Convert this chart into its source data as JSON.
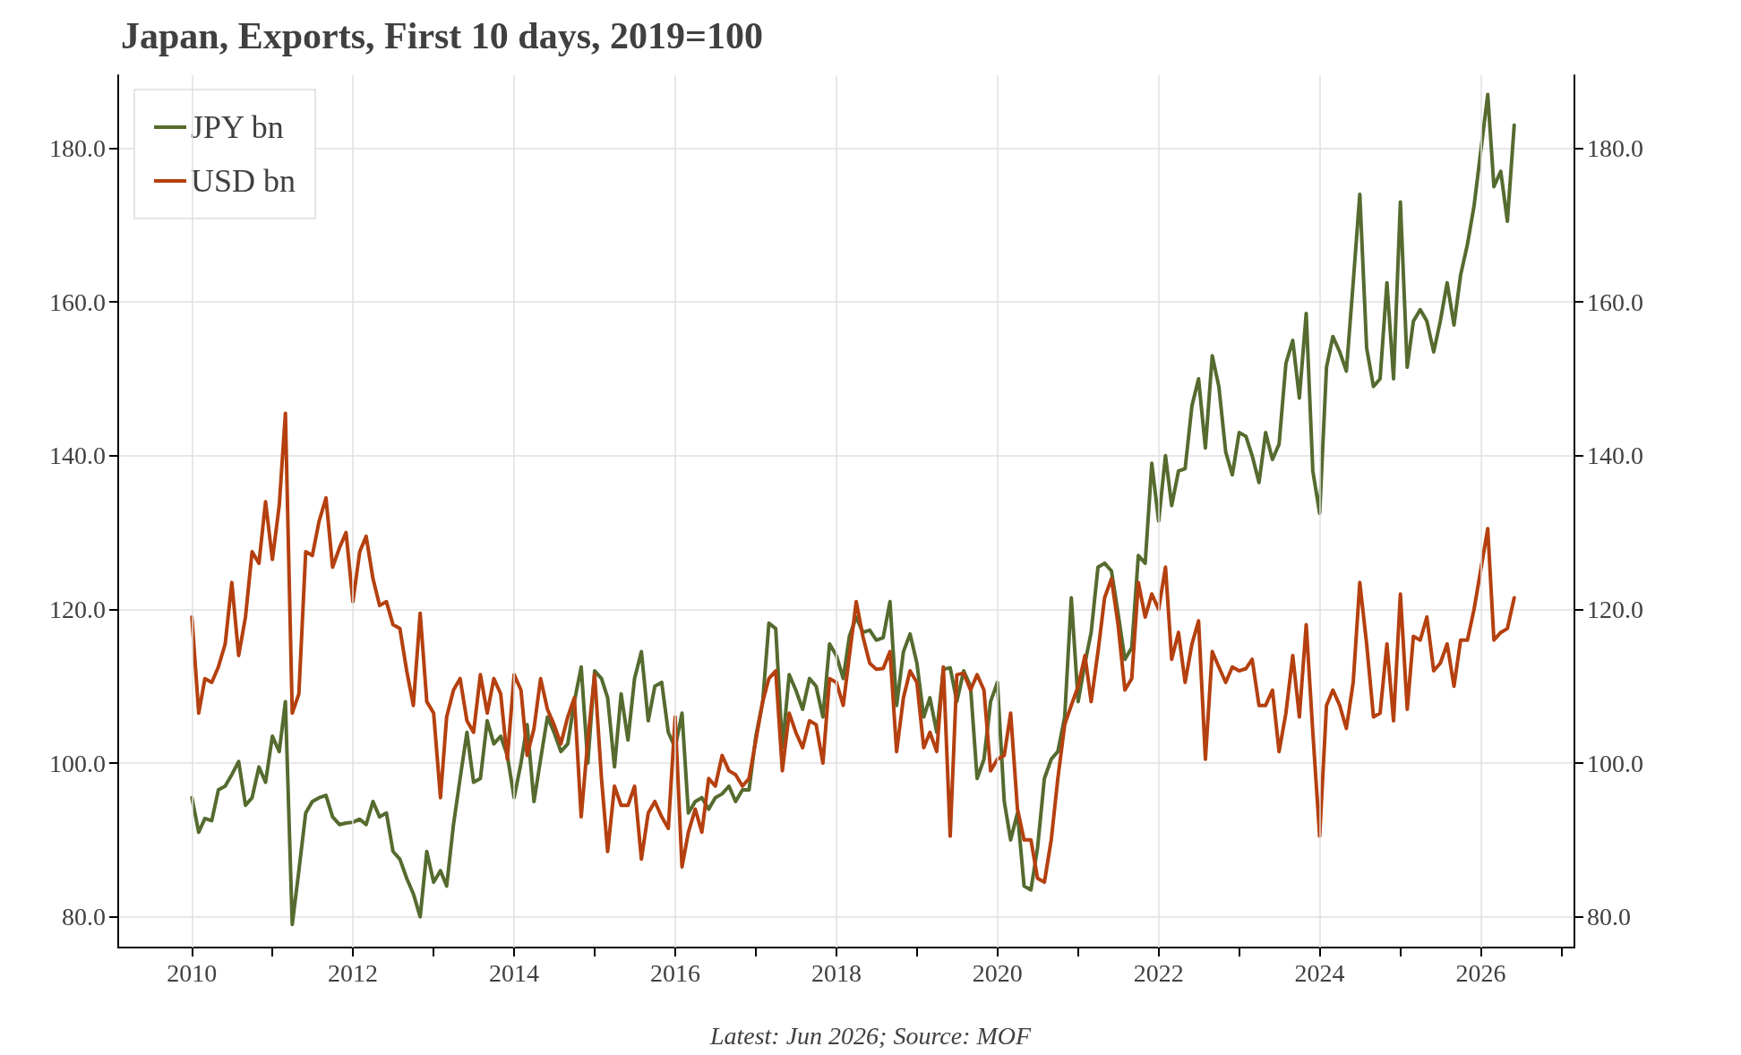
{
  "chart_data": {
    "type": "line",
    "title": "Japan, Exports, First 10 days, 2019=100",
    "annotations": [
      "Latest: Jun 2026; Source: MOF"
    ],
    "x": [
      "2010-01",
      "2010-02",
      "2010-03",
      "2010-04",
      "2010-05",
      "2010-06",
      "2010-07",
      "2010-08",
      "2010-09",
      "2010-10",
      "2010-11",
      "2010-12",
      "2011-01",
      "2011-02",
      "2011-03",
      "2011-04",
      "2011-05",
      "2011-06",
      "2011-07",
      "2011-08",
      "2011-09",
      "2011-10",
      "2011-11",
      "2011-12",
      "2012-01",
      "2012-02",
      "2012-03",
      "2012-04",
      "2012-05",
      "2012-06",
      "2012-07",
      "2012-08",
      "2012-09",
      "2012-10",
      "2012-11",
      "2012-12",
      "2013-01",
      "2013-02",
      "2013-03",
      "2013-04",
      "2013-05",
      "2013-06",
      "2013-07",
      "2013-08",
      "2013-09",
      "2013-10",
      "2013-11",
      "2013-12",
      "2014-01",
      "2014-02",
      "2014-03",
      "2014-04",
      "2014-05",
      "2014-06",
      "2014-07",
      "2014-08",
      "2014-09",
      "2014-10",
      "2014-11",
      "2014-12",
      "2015-01",
      "2015-02",
      "2015-03",
      "2015-04",
      "2015-05",
      "2015-06",
      "2015-07",
      "2015-08",
      "2015-09",
      "2015-10",
      "2015-11",
      "2015-12",
      "2016-01",
      "2016-02",
      "2016-03",
      "2016-04",
      "2016-05",
      "2016-06",
      "2016-07",
      "2016-08",
      "2016-09",
      "2016-10",
      "2016-11",
      "2016-12",
      "2017-01",
      "2017-02",
      "2017-03",
      "2017-04",
      "2017-05",
      "2017-06",
      "2017-07",
      "2017-08",
      "2017-09",
      "2017-10",
      "2017-11",
      "2017-12",
      "2018-01",
      "2018-02",
      "2018-03",
      "2018-04",
      "2018-05",
      "2018-06",
      "2018-07",
      "2018-08",
      "2018-09",
      "2018-10",
      "2018-11",
      "2018-12",
      "2019-01",
      "2019-02",
      "2019-03",
      "2019-04",
      "2019-05",
      "2019-06",
      "2019-07",
      "2019-08",
      "2019-09",
      "2019-10",
      "2019-11",
      "2019-12",
      "2020-01",
      "2020-02",
      "2020-03",
      "2020-04",
      "2020-05",
      "2020-06",
      "2020-07",
      "2020-08",
      "2020-09",
      "2020-10",
      "2020-11",
      "2020-12",
      "2021-01",
      "2021-02",
      "2021-03",
      "2021-04",
      "2021-05",
      "2021-06",
      "2021-07",
      "2021-08",
      "2021-09",
      "2021-10",
      "2021-11",
      "2021-12",
      "2022-01",
      "2022-02",
      "2022-03",
      "2022-04",
      "2022-05",
      "2022-06",
      "2022-07",
      "2022-08",
      "2022-09",
      "2022-10",
      "2022-11",
      "2022-12",
      "2023-01",
      "2023-02",
      "2023-03",
      "2023-04",
      "2023-05",
      "2023-06",
      "2023-07",
      "2023-08",
      "2023-09",
      "2023-10",
      "2023-11",
      "2023-12",
      "2024-01",
      "2024-02",
      "2024-03",
      "2024-04",
      "2024-05",
      "2024-06",
      "2024-07",
      "2024-08",
      "2024-09",
      "2024-10",
      "2024-11",
      "2024-12",
      "2025-01",
      "2025-02",
      "2025-03",
      "2025-04",
      "2025-05",
      "2025-06",
      "2025-07",
      "2025-08",
      "2025-09",
      "2025-10",
      "2025-11",
      "2025-12",
      "2026-02",
      "2026-03",
      "2026-04",
      "2026-05",
      "2026-06"
    ],
    "series": [
      {
        "name": "JPY bn",
        "color": "#556b2f",
        "values": [
          95.5,
          91,
          92.8,
          92.5,
          96.5,
          97,
          98.5,
          100.2,
          94.5,
          95.5,
          99.5,
          97.5,
          103.5,
          101.5,
          108,
          79,
          86,
          93.5,
          95,
          95.5,
          95.8,
          93,
          92,
          92.2,
          92.3,
          92.7,
          92,
          95,
          93,
          93.5,
          88.5,
          87.5,
          85,
          83,
          80,
          88.5,
          84.5,
          86,
          84,
          92,
          98,
          104,
          97.5,
          98,
          105.5,
          102.5,
          103.5,
          101,
          95.5,
          100,
          105,
          95,
          100.5,
          106,
          104,
          101.5,
          102.5,
          108,
          112.5,
          100,
          112,
          111,
          108.5,
          99.5,
          109,
          103,
          111,
          114.5,
          105.5,
          110,
          110.5,
          104,
          102,
          106.5,
          93.5,
          95,
          95.5,
          94,
          95.5,
          96,
          97,
          95,
          96.5,
          96.5,
          103.5,
          108,
          118.2,
          117.5,
          102,
          111.5,
          109.5,
          107,
          111,
          110,
          106,
          115.5,
          114,
          111,
          116.5,
          119,
          117,
          117.3,
          116,
          116.3,
          121,
          107.5,
          114.5,
          116.8,
          113,
          106,
          108.5,
          104,
          112.2,
          112.4,
          108,
          112,
          110,
          98,
          100.5,
          108,
          110.5,
          95,
          90,
          93.5,
          84,
          83.5,
          89,
          98,
          100.5,
          101.5,
          106,
          121.5,
          108,
          113,
          117,
          125.5,
          126,
          125,
          119.5,
          113.5,
          115,
          127,
          126,
          139,
          131.5,
          140,
          133.5,
          138,
          138.3,
          146.5,
          150,
          141,
          153,
          149,
          140.5,
          137.5,
          143,
          142.5,
          140,
          136.5,
          143,
          139.5,
          141.5,
          152,
          155,
          147.5,
          158.5,
          138,
          132.5,
          151.5,
          155.5,
          153.5,
          151,
          162.5,
          174,
          154,
          149,
          150,
          162.5,
          150,
          173,
          151.5,
          157.5,
          159,
          157.5,
          153.5,
          157.5,
          162.5,
          157,
          163.5,
          167.5,
          172.5,
          187,
          175,
          177,
          170.5,
          183
        ]
      },
      {
        "name": "USD bn",
        "color": "#b5400f",
        "values": [
          119,
          106.5,
          111,
          110.5,
          112.5,
          115.5,
          123.5,
          114,
          119,
          127.5,
          126,
          134,
          126.5,
          133.5,
          145.5,
          106.5,
          109,
          127.5,
          127,
          131.5,
          134.5,
          125.5,
          128,
          130,
          121,
          127.5,
          129.5,
          124,
          120.5,
          121,
          118,
          117.5,
          112,
          107.5,
          119.5,
          108,
          106.5,
          95.5,
          106,
          109.5,
          111,
          105.5,
          104,
          111.5,
          106.5,
          111,
          109,
          100.5,
          111.5,
          109.5,
          101,
          104.5,
          111,
          107,
          105,
          102.5,
          106,
          108.5,
          93,
          103,
          111.5,
          98,
          88.5,
          97,
          94.5,
          94.5,
          97,
          87.5,
          93.5,
          95,
          93,
          91.5,
          106,
          86.5,
          91,
          94,
          91,
          98,
          97,
          101,
          99,
          98.5,
          97,
          98,
          103,
          108,
          111,
          112,
          99,
          106.5,
          104,
          102,
          105.5,
          105,
          100,
          111,
          110.5,
          107.5,
          114,
          121,
          116.5,
          113,
          112.2,
          112.3,
          114.5,
          101.5,
          108.5,
          112,
          110.5,
          102,
          104,
          101.5,
          112.5,
          90.5,
          111.5,
          111.7,
          109.5,
          111.5,
          109.5,
          99,
          100.5,
          101,
          106.5,
          94,
          90,
          90,
          85,
          84.5,
          90,
          98,
          105,
          107.5,
          110,
          114,
          108,
          114.5,
          121.5,
          124,
          118,
          109.5,
          111,
          123.5,
          119,
          122,
          120,
          125.5,
          113.5,
          117,
          110.5,
          115.5,
          118.5,
          100.5,
          114.5,
          112.5,
          110.5,
          112.5,
          112,
          112.3,
          113.5,
          107.5,
          107.5,
          109.5,
          101.5,
          106.5,
          114,
          106,
          118,
          104,
          90.5,
          107.5,
          109.5,
          107.5,
          104.5,
          110.5,
          123.5,
          115.5,
          106,
          106.5,
          115.5,
          105.5,
          122,
          107,
          116.5,
          116,
          119,
          112,
          113,
          115.5,
          110,
          116,
          116,
          120,
          130.5,
          116,
          117,
          117.5,
          121.5
        ]
      }
    ],
    "xlim": [
      "2009-02",
      "2027-03"
    ],
    "xticks": [
      "2010",
      {
        "value": "2011",
        "label": null
      },
      "2012",
      {
        "value": "2013",
        "label": null
      },
      "2014",
      {
        "value": "2015",
        "label": null
      },
      "2016",
      {
        "value": "2017",
        "label": null
      },
      "2018",
      {
        "value": "2019",
        "label": null
      },
      "2020",
      {
        "value": "2021",
        "label": null
      },
      "2022",
      {
        "value": "2023",
        "label": null
      },
      "2024",
      {
        "value": "2025",
        "label": null
      },
      "2026",
      {
        "value": "2027",
        "label": null
      }
    ],
    "ylim": [
      76,
      189.5
    ],
    "yticks": [
      {
        "value": 80,
        "label": "80.0"
      },
      {
        "value": 100,
        "label": "100.0"
      },
      {
        "value": 120,
        "label": "120.0"
      },
      {
        "value": 140,
        "label": "140.0"
      },
      {
        "value": 160,
        "label": "160.0"
      },
      {
        "value": 180,
        "label": "180.0"
      }
    ],
    "y2lim": [
      76,
      189.5
    ],
    "y2ticks": [
      {
        "value": 80,
        "label": "80.0"
      },
      {
        "value": 100,
        "label": "100.0"
      },
      {
        "value": 120,
        "label": "120.0"
      },
      {
        "value": 140,
        "label": "140.0"
      },
      {
        "value": 160,
        "label": "160.0"
      },
      {
        "value": 180,
        "label": "180.0"
      }
    ],
    "grid": true,
    "legend": "top left",
    "marker": "none",
    "line_style": "solid"
  }
}
